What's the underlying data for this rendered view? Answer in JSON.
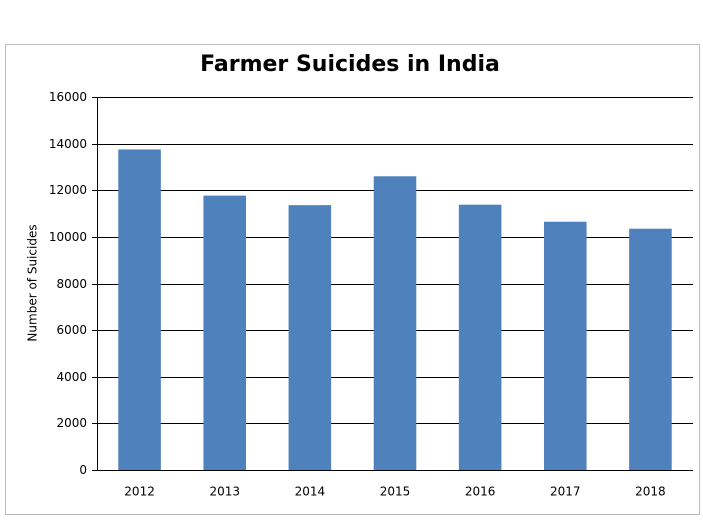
{
  "chart_data": {
    "type": "bar",
    "title": "Farmer Suicides in India",
    "y_label": "Number of Suicides",
    "categories": [
      "2012",
      "2013",
      "2014",
      "2015",
      "2016",
      "2017",
      "2018"
    ],
    "values": [
      13750,
      11770,
      11360,
      12600,
      11380,
      10650,
      10350
    ],
    "color": "#4f81bd",
    "ylim": [
      0,
      16000
    ],
    "yticks": [
      0,
      2000,
      4000,
      6000,
      8000,
      10000,
      12000,
      14000,
      16000
    ],
    "grid": true
  }
}
